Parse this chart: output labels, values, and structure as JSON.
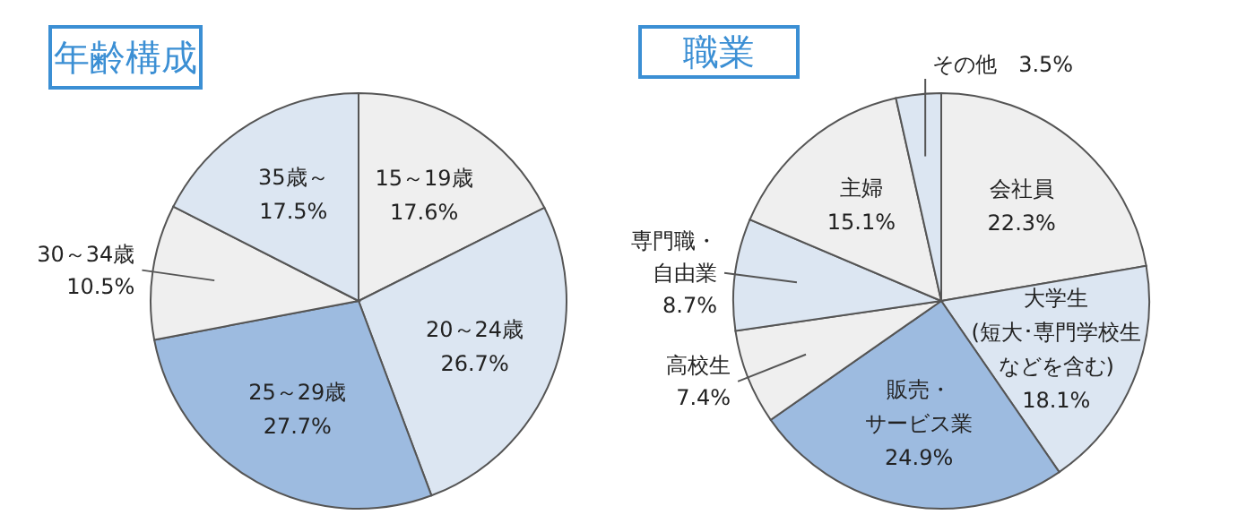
{
  "chart_data": [
    {
      "type": "pie",
      "title": "年齢構成",
      "categories": [
        "15～19歳",
        "20～24歳",
        "25～29歳",
        "30～34歳",
        "35歳～"
      ],
      "values": [
        17.6,
        26.7,
        27.7,
        10.5,
        17.5
      ],
      "value_labels": [
        "17.6%",
        "26.7%",
        "27.7%",
        "10.5%",
        "17.5%"
      ],
      "colors": [
        "#efefef",
        "#dce6f2",
        "#9dbbe0",
        "#efefef",
        "#dce6f2"
      ]
    },
    {
      "type": "pie",
      "title": "職業",
      "categories": [
        "会社員",
        "大学生(短大･専門学校生などを含む)",
        "販売・サービス業",
        "高校生",
        "専門職・自由業",
        "主婦",
        "その他"
      ],
      "values": [
        22.3,
        18.1,
        24.9,
        7.4,
        8.7,
        15.1,
        3.5
      ],
      "value_labels": [
        "22.3%",
        "18.1%",
        "24.9%",
        "7.4%",
        "8.7%",
        "15.1%",
        "3.5%"
      ],
      "colors": [
        "#efefef",
        "#dce6f2",
        "#9dbbe0",
        "#efefef",
        "#dce6f2",
        "#efefef",
        "#dce6f2"
      ]
    }
  ]
}
